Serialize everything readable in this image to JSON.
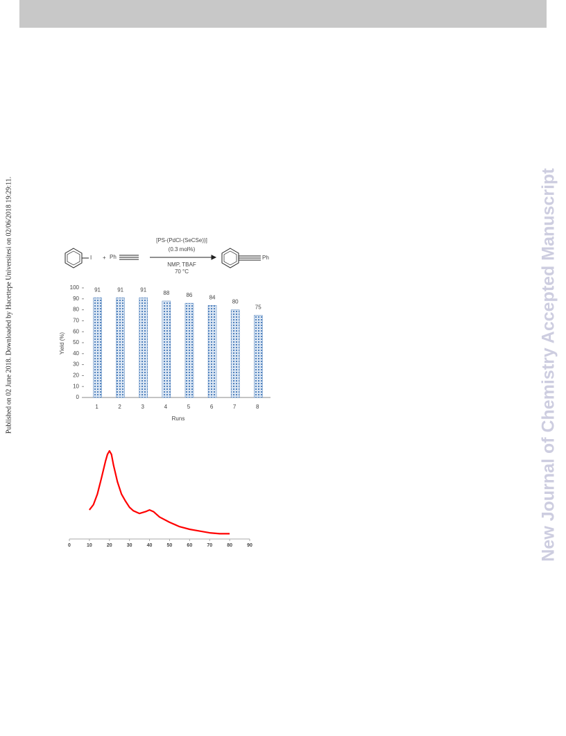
{
  "side_note": "Published on 02 June 2018. Downloaded by Hacettepe Universitesi on 02/06/2018 19:29:11.",
  "watermark": "New Journal of Chemistry Accepted Manuscript",
  "scheme": {
    "reactant_1": "I",
    "plus": "+",
    "reactant_2": "Ph",
    "catalyst": "[PS-(PdCl-(SeCSe))]",
    "loading": "(0.3 mol%)",
    "solvent": "NMP, TBAF",
    "temperature": "70 °C",
    "product": "Ph"
  },
  "chart_data": [
    {
      "type": "bar",
      "categories": [
        "1",
        "2",
        "3",
        "4",
        "5",
        "6",
        "7",
        "8"
      ],
      "values": [
        91,
        91,
        91,
        88,
        86,
        84,
        80,
        75
      ],
      "color": "#4f81bd",
      "ylim": [
        0,
        100
      ],
      "yticks": [
        0,
        10,
        20,
        30,
        40,
        50,
        60,
        70,
        80,
        90,
        100
      ],
      "y_label": "Yield (%)",
      "x_label": "Runs"
    },
    {
      "type": "line",
      "x": [
        10,
        12,
        14,
        16,
        18,
        19,
        20,
        21,
        22,
        24,
        26,
        28,
        30,
        32,
        35,
        38,
        40,
        42,
        45,
        50,
        55,
        60,
        65,
        70,
        75,
        80
      ],
      "values": [
        33,
        39,
        51,
        69,
        88,
        96,
        100,
        96,
        84,
        65,
        51,
        43,
        36,
        32,
        29,
        31,
        33,
        31,
        25,
        19,
        14,
        11,
        9,
        7,
        6,
        6
      ],
      "color": "#ff0000",
      "xlim": [
        0,
        90
      ],
      "xticks": [
        0,
        10,
        20,
        30,
        40,
        50,
        60,
        70,
        80,
        90
      ],
      "ylim": [
        0,
        100
      ]
    }
  ]
}
